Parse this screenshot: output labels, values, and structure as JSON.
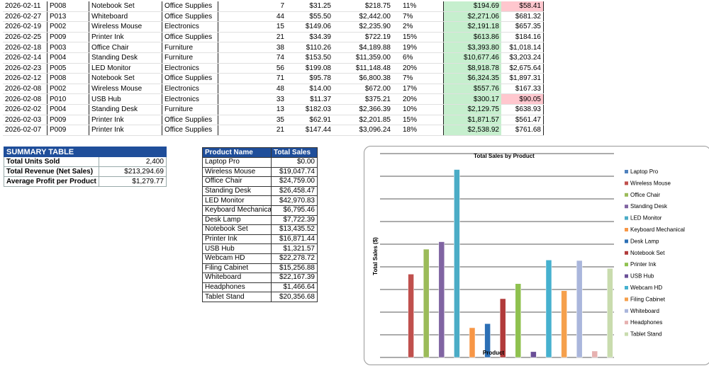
{
  "data_rows": [
    {
      "date": "2026-02-11",
      "pid": "P008",
      "product": "Notebook Set",
      "category": "Office Supplies",
      "units": "7",
      "price": "$31.25",
      "net": "$218.75",
      "discount": "11%",
      "gross": "$194.69",
      "profit": "$58.41",
      "gross_hl": "green",
      "profit_hl": "red"
    },
    {
      "date": "2026-02-27",
      "pid": "P013",
      "product": "Whiteboard",
      "category": "Office Supplies",
      "units": "44",
      "price": "$55.50",
      "net": "$2,442.00",
      "discount": "7%",
      "gross": "$2,271.06",
      "profit": "$681.32",
      "gross_hl": "green",
      "profit_hl": ""
    },
    {
      "date": "2026-02-19",
      "pid": "P002",
      "product": "Wireless Mouse",
      "category": "Electronics",
      "units": "15",
      "price": "$149.06",
      "net": "$2,235.90",
      "discount": "2%",
      "gross": "$2,191.18",
      "profit": "$657.35",
      "gross_hl": "green",
      "profit_hl": ""
    },
    {
      "date": "2026-02-25",
      "pid": "P009",
      "product": "Printer Ink",
      "category": "Office Supplies",
      "units": "21",
      "price": "$34.39",
      "net": "$722.19",
      "discount": "15%",
      "gross": "$613.86",
      "profit": "$184.16",
      "gross_hl": "green",
      "profit_hl": ""
    },
    {
      "date": "2026-02-18",
      "pid": "P003",
      "product": "Office Chair",
      "category": "Furniture",
      "units": "38",
      "price": "$110.26",
      "net": "$4,189.88",
      "discount": "19%",
      "gross": "$3,393.80",
      "profit": "$1,018.14",
      "gross_hl": "green",
      "profit_hl": ""
    },
    {
      "date": "2026-02-14",
      "pid": "P004",
      "product": "Standing Desk",
      "category": "Furniture",
      "units": "74",
      "price": "$153.50",
      "net": "$11,359.00",
      "discount": "6%",
      "gross": "$10,677.46",
      "profit": "$3,203.24",
      "gross_hl": "green",
      "profit_hl": ""
    },
    {
      "date": "2026-02-23",
      "pid": "P005",
      "product": "LED Monitor",
      "category": "Electronics",
      "units": "56",
      "price": "$199.08",
      "net": "$11,148.48",
      "discount": "20%",
      "gross": "$8,918.78",
      "profit": "$2,675.64",
      "gross_hl": "green",
      "profit_hl": ""
    },
    {
      "date": "2026-02-12",
      "pid": "P008",
      "product": "Notebook Set",
      "category": "Office Supplies",
      "units": "71",
      "price": "$95.78",
      "net": "$6,800.38",
      "discount": "7%",
      "gross": "$6,324.35",
      "profit": "$1,897.31",
      "gross_hl": "green",
      "profit_hl": ""
    },
    {
      "date": "2026-02-08",
      "pid": "P002",
      "product": "Wireless Mouse",
      "category": "Electronics",
      "units": "48",
      "price": "$14.00",
      "net": "$672.00",
      "discount": "17%",
      "gross": "$557.76",
      "profit": "$167.33",
      "gross_hl": "green",
      "profit_hl": ""
    },
    {
      "date": "2026-02-08",
      "pid": "P010",
      "product": "USB Hub",
      "category": "Electronics",
      "units": "33",
      "price": "$11.37",
      "net": "$375.21",
      "discount": "20%",
      "gross": "$300.17",
      "profit": "$90.05",
      "gross_hl": "green",
      "profit_hl": "red"
    },
    {
      "date": "2026-02-02",
      "pid": "P004",
      "product": "Standing Desk",
      "category": "Furniture",
      "units": "13",
      "price": "$182.03",
      "net": "$2,366.39",
      "discount": "10%",
      "gross": "$2,129.75",
      "profit": "$638.93",
      "gross_hl": "green",
      "profit_hl": ""
    },
    {
      "date": "2026-02-03",
      "pid": "P009",
      "product": "Printer Ink",
      "category": "Office Supplies",
      "units": "35",
      "price": "$62.91",
      "net": "$2,201.85",
      "discount": "15%",
      "gross": "$1,871.57",
      "profit": "$561.47",
      "gross_hl": "green",
      "profit_hl": ""
    },
    {
      "date": "2026-02-07",
      "pid": "P009",
      "product": "Printer Ink",
      "category": "Office Supplies",
      "units": "21",
      "price": "$147.44",
      "net": "$3,096.24",
      "discount": "18%",
      "gross": "$2,538.92",
      "profit": "$761.68",
      "gross_hl": "green",
      "profit_hl": ""
    }
  ],
  "summary": {
    "title": "SUMMARY TABLE",
    "rows": [
      {
        "label": "Total Units Sold",
        "value": "2,400"
      },
      {
        "label": "Total Revenue (Net Sales)",
        "value": "$213,294.69"
      },
      {
        "label": "Average Profit per Product",
        "value": "$1,279.77"
      }
    ]
  },
  "product_totals": {
    "headers": [
      "Product Name",
      "Total Sales"
    ],
    "rows": [
      {
        "name": "Laptop Pro",
        "sales": "$0.00"
      },
      {
        "name": "Wireless Mouse",
        "sales": "$19,047.74"
      },
      {
        "name": "Office Chair",
        "sales": "$24,759.00"
      },
      {
        "name": "Standing Desk",
        "sales": "$26,458.47"
      },
      {
        "name": "LED Monitor",
        "sales": "$42,970.83"
      },
      {
        "name": "Keyboard Mechanical",
        "sales": "$6,795.46"
      },
      {
        "name": "Desk Lamp",
        "sales": "$7,722.39"
      },
      {
        "name": "Notebook Set",
        "sales": "$13,435.52"
      },
      {
        "name": "Printer Ink",
        "sales": "$16,871.44"
      },
      {
        "name": "USB Hub",
        "sales": "$1,321.57"
      },
      {
        "name": "Webcam HD",
        "sales": "$22,278.72"
      },
      {
        "name": "Filing Cabinet",
        "sales": "$15,256.88"
      },
      {
        "name": "Whiteboard",
        "sales": "$22,167.39"
      },
      {
        "name": "Headphones",
        "sales": "$1,466.64"
      },
      {
        "name": "Tablet Stand",
        "sales": "$20,356.68"
      }
    ]
  },
  "colors": {
    "header_blue": "#1f4e9a",
    "highlight_green": "#c6efce",
    "highlight_red": "#ffc7ce"
  },
  "chart_data": {
    "type": "bar",
    "title": "Total Sales by Product",
    "xlabel": "Product",
    "ylabel": "Total Sales ($)",
    "ylim": [
      0,
      45000
    ],
    "grid": true,
    "legend_position": "right",
    "series": [
      {
        "name": "Laptop Pro",
        "value": 0,
        "color": "#4f81bd"
      },
      {
        "name": "Wireless Mouse",
        "value": 19047.74,
        "color": "#c0504d"
      },
      {
        "name": "Office Chair",
        "value": 24759.0,
        "color": "#9bbb59"
      },
      {
        "name": "Standing Desk",
        "value": 26458.47,
        "color": "#8064a2"
      },
      {
        "name": "LED Monitor",
        "value": 42970.83,
        "color": "#4bacc6"
      },
      {
        "name": "Keyboard Mechanical",
        "value": 6795.46,
        "color": "#f79646"
      },
      {
        "name": "Desk Lamp",
        "value": 7722.39,
        "color": "#2c6fb5"
      },
      {
        "name": "Notebook Set",
        "value": 13435.52,
        "color": "#b13b3b"
      },
      {
        "name": "Printer Ink",
        "value": 16871.44,
        "color": "#8fc14f"
      },
      {
        "name": "USB Hub",
        "value": 1321.57,
        "color": "#6a4f97"
      },
      {
        "name": "Webcam HD",
        "value": 22278.72,
        "color": "#46b1cf"
      },
      {
        "name": "Filing Cabinet",
        "value": 15256.88,
        "color": "#f5a04c"
      },
      {
        "name": "Whiteboard",
        "value": 22167.39,
        "color": "#aab6dc"
      },
      {
        "name": "Headphones",
        "value": 1466.64,
        "color": "#e6b1b0"
      },
      {
        "name": "Tablet Stand",
        "value": 20356.68,
        "color": "#c9dcae"
      }
    ]
  }
}
